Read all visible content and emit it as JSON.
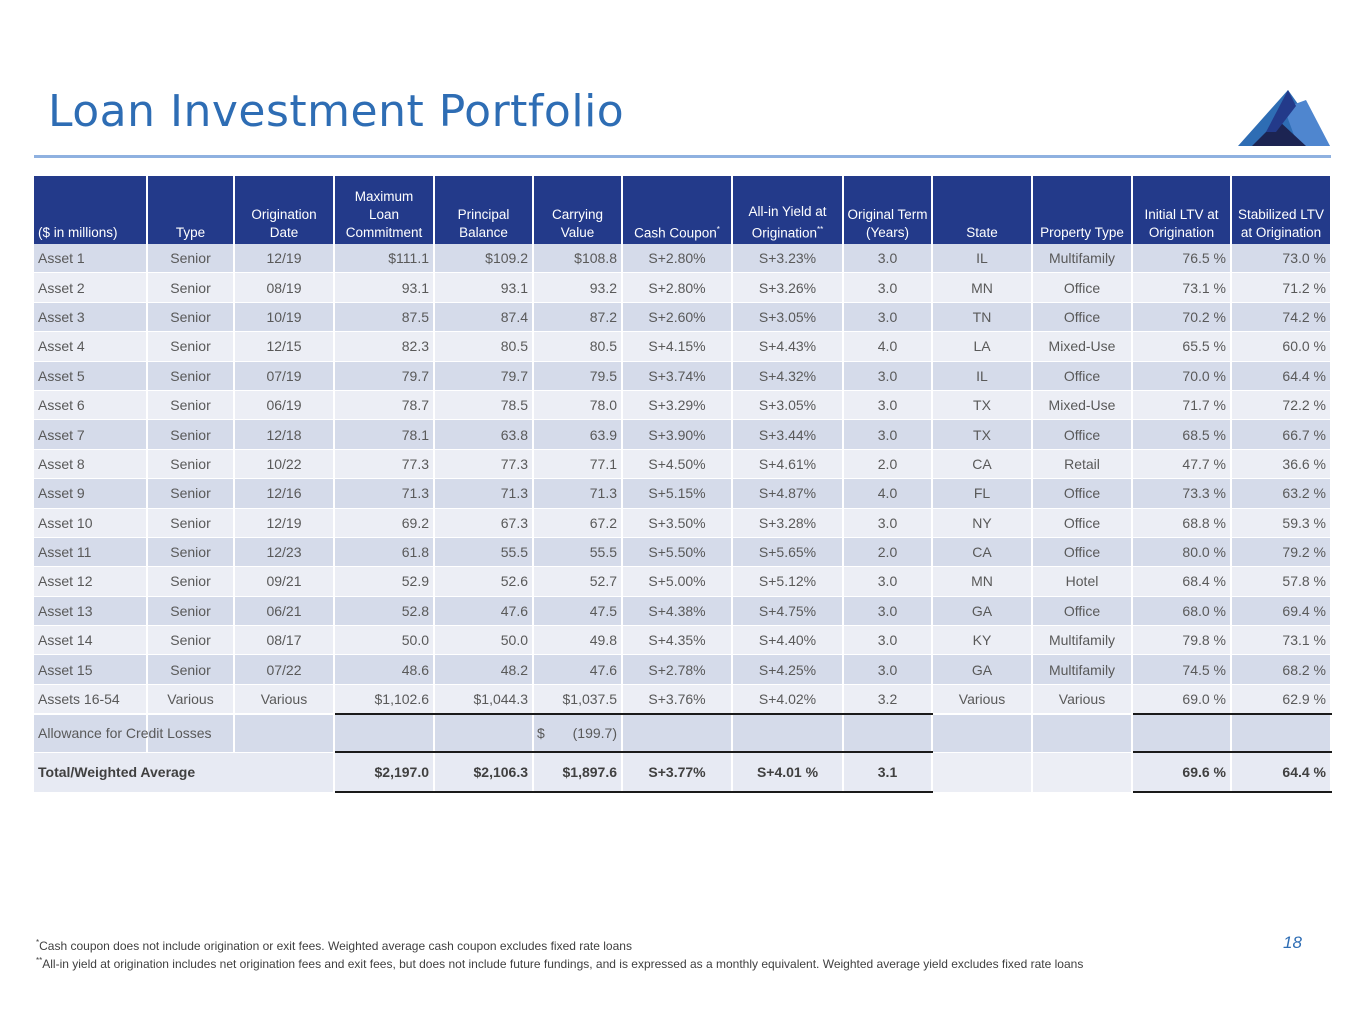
{
  "title": "Loan Investment Portfolio",
  "page_number": "18",
  "columns": [
    "($ in millions)",
    "Type",
    "Origination Date",
    "Maximum Loan Commitment",
    "Principal Balance",
    "Carrying Value",
    "Cash Coupon",
    "All-in Yield at Origination",
    "Original Term (Years)",
    "State",
    "Property Type",
    "Initial LTV at Origination",
    "Stabilized LTV at Origination"
  ],
  "cash_coupon_marker": "*",
  "allin_yield_marker": "**",
  "rows": [
    [
      "Asset 1",
      "Senior",
      "12/19",
      "$111.1",
      "$109.2",
      "$108.8",
      "S+2.80%",
      "S+3.23%",
      "3.0",
      "IL",
      "Multifamily",
      "76.5 %",
      "73.0 %"
    ],
    [
      "Asset 2",
      "Senior",
      "08/19",
      "93.1",
      "93.1",
      "93.2",
      "S+2.80%",
      "S+3.26%",
      "3.0",
      "MN",
      "Office",
      "73.1 %",
      "71.2 %"
    ],
    [
      "Asset 3",
      "Senior",
      "10/19",
      "87.5",
      "87.4",
      "87.2",
      "S+2.60%",
      "S+3.05%",
      "3.0",
      "TN",
      "Office",
      "70.2 %",
      "74.2 %"
    ],
    [
      "Asset 4",
      "Senior",
      "12/15",
      "82.3",
      "80.5",
      "80.5",
      "S+4.15%",
      "S+4.43%",
      "4.0",
      "LA",
      "Mixed-Use",
      "65.5 %",
      "60.0 %"
    ],
    [
      "Asset 5",
      "Senior",
      "07/19",
      "79.7",
      "79.7",
      "79.5",
      "S+3.74%",
      "S+4.32%",
      "3.0",
      "IL",
      "Office",
      "70.0 %",
      "64.4 %"
    ],
    [
      "Asset 6",
      "Senior",
      "06/19",
      "78.7",
      "78.5",
      "78.0",
      "S+3.29%",
      "S+3.05%",
      "3.0",
      "TX",
      "Mixed-Use",
      "71.7 %",
      "72.2 %"
    ],
    [
      "Asset 7",
      "Senior",
      "12/18",
      "78.1",
      "63.8",
      "63.9",
      "S+3.90%",
      "S+3.44%",
      "3.0",
      "TX",
      "Office",
      "68.5 %",
      "66.7 %"
    ],
    [
      "Asset 8",
      "Senior",
      "10/22",
      "77.3",
      "77.3",
      "77.1",
      "S+4.50%",
      "S+4.61%",
      "2.0",
      "CA",
      "Retail",
      "47.7 %",
      "36.6 %"
    ],
    [
      "Asset 9",
      "Senior",
      "12/16",
      "71.3",
      "71.3",
      "71.3",
      "S+5.15%",
      "S+4.87%",
      "4.0",
      "FL",
      "Office",
      "73.3 %",
      "63.2 %"
    ],
    [
      "Asset 10",
      "Senior",
      "12/19",
      "69.2",
      "67.3",
      "67.2",
      "S+3.50%",
      "S+3.28%",
      "3.0",
      "NY",
      "Office",
      "68.8 %",
      "59.3 %"
    ],
    [
      "Asset 11",
      "Senior",
      "12/23",
      "61.8",
      "55.5",
      "55.5",
      "S+5.50%",
      "S+5.65%",
      "2.0",
      "CA",
      "Office",
      "80.0 %",
      "79.2 %"
    ],
    [
      "Asset 12",
      "Senior",
      "09/21",
      "52.9",
      "52.6",
      "52.7",
      "S+5.00%",
      "S+5.12%",
      "3.0",
      "MN",
      "Hotel",
      "68.4 %",
      "57.8 %"
    ],
    [
      "Asset 13",
      "Senior",
      "06/21",
      "52.8",
      "47.6",
      "47.5",
      "S+4.38%",
      "S+4.75%",
      "3.0",
      "GA",
      "Office",
      "68.0 %",
      "69.4 %"
    ],
    [
      "Asset 14",
      "Senior",
      "08/17",
      "50.0",
      "50.0",
      "49.8",
      "S+4.35%",
      "S+4.40%",
      "3.0",
      "KY",
      "Multifamily",
      "79.8 %",
      "73.1 %"
    ],
    [
      "Asset 15",
      "Senior",
      "07/22",
      "48.6",
      "48.2",
      "47.6",
      "S+2.78%",
      "S+4.25%",
      "3.0",
      "GA",
      "Multifamily",
      "74.5 %",
      "68.2 %"
    ],
    [
      "Assets 16-54",
      "Various",
      "Various",
      "$1,102.6",
      "$1,044.3",
      "$1,037.5",
      "S+3.76%",
      "S+4.02%",
      "3.2",
      "Various",
      "Various",
      "69.0 %",
      "62.9 %"
    ]
  ],
  "allowance": {
    "label": "Allowance for Credit Losses",
    "currency": "$",
    "carrying_value": "(199.7)"
  },
  "total": {
    "label": "Total/Weighted Average",
    "max_commitment": "$2,197.0",
    "principal": "$2,106.3",
    "carrying": "$1,897.6",
    "cash_coupon": "S+3.77%",
    "allin_yield": "S+4.01 %",
    "term": "3.1",
    "initial_ltv": "69.6 %",
    "stabilized_ltv": "64.4 %"
  },
  "footnotes": [
    {
      "marker": "*",
      "text": "Cash coupon does not include origination or exit fees. Weighted average cash coupon excludes fixed rate loans"
    },
    {
      "marker": "**",
      "text": "All-in yield at origination includes net origination fees and exit fees, but does not include future fundings, and is expressed as a monthly equivalent. Weighted average yield excludes fixed rate loans"
    }
  ],
  "colors": {
    "title": "#2e6db4",
    "header_bg": "#233a8a",
    "row_dark": "#d5dbea",
    "row_light": "#eceef5",
    "rule": "#8fb1e0"
  },
  "logo_icon": "mountain-logo-icon"
}
